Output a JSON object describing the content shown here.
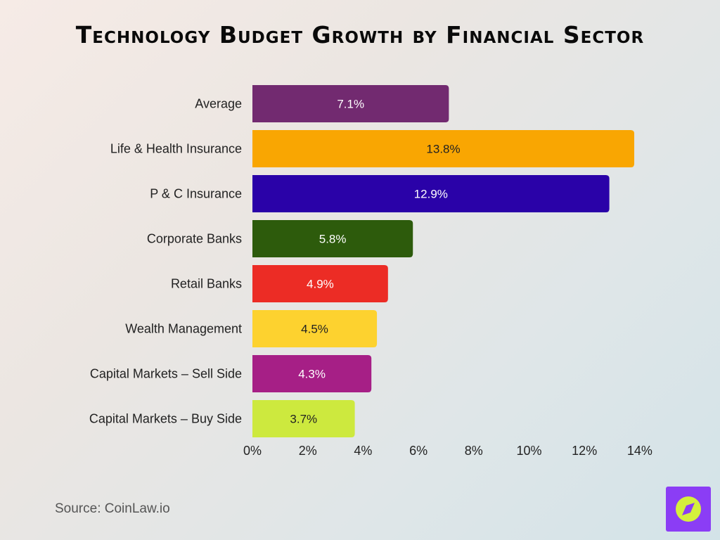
{
  "colors": {
    "background": "#ebe6e2"
  },
  "chart_data": {
    "type": "bar",
    "orientation": "horizontal",
    "title": "Technology Budget Growth by Financial Sector",
    "categories": [
      "Average",
      "Life & Health Insurance",
      "P & C Insurance",
      "Corporate Banks",
      "Retail Banks",
      "Wealth Management",
      "Capital Markets – Sell Side",
      "Capital Markets – Buy Side"
    ],
    "values": [
      7.1,
      13.8,
      12.9,
      5.8,
      4.9,
      4.5,
      4.3,
      3.7
    ],
    "value_labels": [
      "7.1%",
      "13.8%",
      "12.9%",
      "5.8%",
      "4.9%",
      "4.5%",
      "4.3%",
      "3.7%"
    ],
    "bar_colors": [
      "#722a70",
      "#f9a602",
      "#2a02a8",
      "#2d5b0c",
      "#ec2c25",
      "#fdd22f",
      "#a61f86",
      "#cde93e"
    ],
    "label_colors": [
      "#ffffff",
      "#222222",
      "#ffffff",
      "#ffffff",
      "#ffffff",
      "#222222",
      "#ffffff",
      "#222222"
    ],
    "xlim": [
      0,
      14
    ],
    "x_ticks": [
      0,
      2,
      4,
      6,
      8,
      10,
      12,
      14
    ],
    "x_tick_labels": [
      "0%",
      "2%",
      "4%",
      "6%",
      "8%",
      "10%",
      "12%",
      "14%"
    ],
    "xlabel": "",
    "ylabel": "",
    "grid": false,
    "legend": "none"
  },
  "source": "Source: CoinLaw.io",
  "logo": {
    "icon": "compass-icon",
    "background_color": "#8b3df5",
    "accent_color": "#d4f03c"
  }
}
